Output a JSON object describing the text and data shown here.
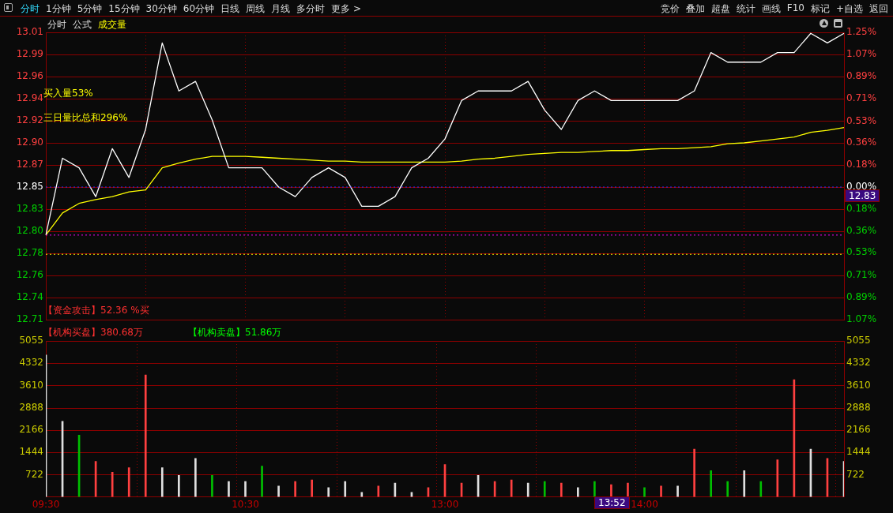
{
  "chart_data": [
    {
      "type": "other",
      "annotations": [
        "分时",
        "1分钟",
        "5分钟",
        "15分钟",
        "30分钟",
        "60分钟",
        "日线",
        "周线",
        "月线",
        "多分时",
        "更多 >",
        "竞价",
        "叠加",
        "超盘",
        "统计",
        "画线",
        "F10",
        "标记",
        "+自选",
        "返回"
      ]
    },
    {
      "type": "line",
      "categories": [
        null,
        null,
        null,
        null,
        null,
        null,
        null,
        null,
        null,
        null,
        null,
        null,
        null,
        null,
        null,
        null,
        null,
        null,
        null,
        null,
        null,
        null,
        null,
        null,
        null,
        null,
        null,
        null,
        null,
        null,
        null,
        null,
        null,
        null,
        null,
        null,
        null,
        null,
        null,
        null,
        null,
        null,
        null,
        null,
        null,
        null,
        null,
        null,
        null
      ],
      "series": [
        {
          "color": "#ffffff",
          "values": [
            12.8,
            12.88,
            12.87,
            12.84,
            12.89,
            12.86,
            12.91,
            13.0,
            12.95,
            12.96,
            12.92,
            12.87,
            12.87,
            12.87,
            12.85,
            12.84,
            12.86,
            12.87,
            12.86,
            12.83,
            12.83,
            12.84,
            12.87,
            12.88,
            12.9,
            12.94,
            12.95,
            12.95,
            12.95,
            12.96,
            12.93,
            12.91,
            12.94,
            12.95,
            12.94,
            12.94,
            12.94,
            12.94,
            12.94,
            12.95,
            12.99,
            12.98,
            12.98,
            12.98,
            12.99,
            12.99,
            13.01,
            13.0,
            13.01
          ]
        },
        {
          "color": "#ffff00",
          "values": [
            12.8,
            12.823,
            12.833,
            12.837,
            12.84,
            12.845,
            12.847,
            12.87,
            12.875,
            12.879,
            12.882,
            12.882,
            12.882,
            12.881,
            12.88,
            12.879,
            12.878,
            12.877,
            12.877,
            12.876,
            12.876,
            12.876,
            12.876,
            12.876,
            12.876,
            12.877,
            12.879,
            12.88,
            12.882,
            12.884,
            12.885,
            12.886,
            12.886,
            12.887,
            12.888,
            12.888,
            12.889,
            12.89,
            12.89,
            12.891,
            12.892,
            12.895,
            12.896,
            12.898,
            12.9,
            12.902,
            12.907,
            12.909,
            12.912
          ]
        }
      ],
      "ylim": [
        12.712,
        13.011
      ],
      "yticks": [
        {
          "value": 12.712,
          "label": "12.71"
        },
        {
          "value": 12.735,
          "label": "12.74"
        },
        {
          "value": 12.758,
          "label": "12.76"
        },
        {
          "value": 12.781,
          "label": "12.78"
        },
        {
          "value": 12.804,
          "label": "12.80"
        },
        {
          "value": 12.827,
          "label": "12.83"
        },
        {
          "value": 12.85,
          "label": "12.85"
        },
        {
          "value": 12.873,
          "label": "12.87"
        },
        {
          "value": 12.896,
          "label": "12.90"
        },
        {
          "value": 12.919,
          "label": "12.92"
        },
        {
          "value": 12.942,
          "label": "12.94"
        },
        {
          "value": 12.965,
          "label": "12.96"
        },
        {
          "value": 12.988,
          "label": "12.99"
        },
        {
          "value": 13.011,
          "label": "13.01"
        }
      ],
      "y2lim": [
        -1.071,
        1.25
      ],
      "y2ticks": [
        {
          "value": -1.071,
          "label": "1.07%"
        },
        {
          "value": -0.893,
          "label": "0.89%"
        },
        {
          "value": -0.714,
          "label": "0.71%"
        },
        {
          "value": -0.53,
          "label": "0.53%"
        },
        {
          "value": -0.357,
          "label": "0.36%"
        },
        {
          "value": -0.179,
          "label": "0.18%"
        },
        {
          "value": 0,
          "label": "0.00%"
        },
        {
          "value": 0.179,
          "label": "0.18%"
        },
        {
          "value": 0.357,
          "label": "0.36%"
        },
        {
          "value": 0.53,
          "label": "0.53%"
        },
        {
          "value": 0.714,
          "label": "0.71%"
        },
        {
          "value": 0.893,
          "label": "0.89%"
        },
        {
          "value": 1.071,
          "label": "1.07%"
        },
        {
          "value": 1.25,
          "label": "1.25%"
        }
      ],
      "ref_lines": [
        {
          "axis": "y",
          "value": 12.85,
          "color": "#3030ff",
          "line_style": "dotted"
        },
        {
          "axis": "y",
          "value": 12.8,
          "color": "#ff00ff",
          "line_style": "dotted"
        },
        {
          "axis": "y",
          "value": 12.78,
          "color": "#ffff00",
          "line_style": "dotted"
        }
      ],
      "grid": true,
      "tick_labels": "y",
      "annotations": [
        "分时",
        "公式",
        "成交量",
        "买入量53%",
        "三日量比总和296%",
        "【资金攻击】52.36 %买",
        "【机构买盘】380.68万",
        "【机构卖盘】51.86万",
        "12.83"
      ]
    },
    {
      "type": "bar",
      "categories": [
        "09:30",
        null,
        null,
        null,
        null,
        null,
        null,
        null,
        null,
        null,
        null,
        null,
        "10:30",
        null,
        null,
        null,
        null,
        null,
        null,
        null,
        null,
        null,
        null,
        null,
        "13:00",
        null,
        null,
        null,
        null,
        null,
        null,
        null,
        null,
        null,
        null,
        null,
        "14:00",
        null,
        null,
        null,
        null,
        null,
        null,
        null,
        null,
        null,
        null,
        null,
        null
      ],
      "values": [
        4600,
        2450,
        2000,
        1150,
        800,
        950,
        3950,
        950,
        700,
        1250,
        700,
        500,
        500,
        1000,
        350,
        500,
        550,
        300,
        500,
        150,
        350,
        450,
        150,
        300,
        1050,
        450,
        700,
        500,
        550,
        450,
        500,
        450,
        300,
        500,
        400,
        450,
        300,
        350,
        350,
        1550,
        850,
        500,
        850,
        500,
        1200,
        3800,
        1550,
        1250,
        1150
      ],
      "colors": [
        "#e0e0e0",
        "#e0e0e0",
        "#00c000",
        "#ff4040",
        "#ff4040",
        "#ff4040",
        "#ff4040",
        "#e0e0e0",
        "#e0e0e0",
        "#e0e0e0",
        "#00c000",
        "#e0e0e0",
        "#e0e0e0",
        "#00c000",
        "#e0e0e0",
        "#ff4040",
        "#ff4040",
        "#e0e0e0",
        "#e0e0e0",
        "#e0e0e0",
        "#ff4040",
        "#e0e0e0",
        "#e0e0e0",
        "#ff4040",
        "#ff4040",
        "#ff4040",
        "#e0e0e0",
        "#ff4040",
        "#ff4040",
        "#e0e0e0",
        "#00c000",
        "#ff4040",
        "#e0e0e0",
        "#00c000",
        "#ff4040",
        "#ff4040",
        "#00c000",
        "#ff4040",
        "#e0e0e0",
        "#ff4040",
        "#00c000",
        "#00c000",
        "#e0e0e0",
        "#00c000",
        "#ff4040",
        "#ff4040",
        "#e0e0e0",
        "#ff4040",
        "#e0e0e0"
      ],
      "ylim": [
        0,
        5055
      ],
      "yticks": [
        722,
        1444,
        2166,
        2888,
        3610,
        4332,
        5055
      ],
      "y2lim": [
        0,
        5055
      ],
      "y2ticks": [
        722,
        1444,
        2166,
        2888,
        3610,
        4332,
        5055
      ],
      "grid": true,
      "annotations": [
        "13:52"
      ]
    }
  ]
}
